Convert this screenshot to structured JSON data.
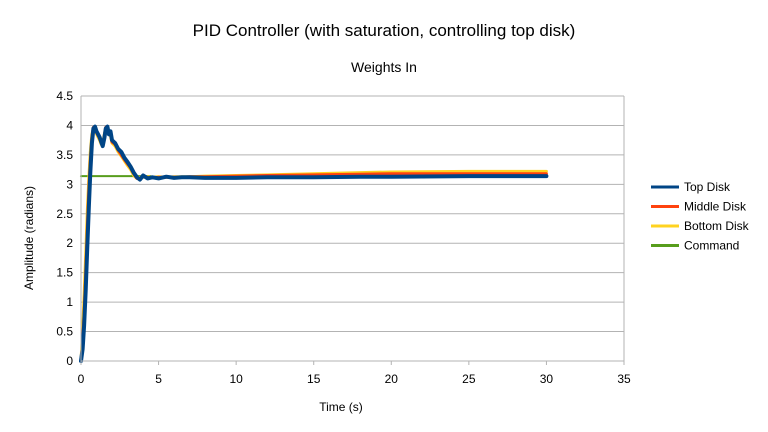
{
  "chart_data": {
    "type": "line",
    "title": "PID Controller (with saturation, controlling top disk)",
    "subtitle": "Weights In",
    "xlabel": "Time (s)",
    "ylabel": "Amplitude (radians)",
    "xlim": [
      0,
      35
    ],
    "ylim": [
      0,
      4.5
    ],
    "xticks": [
      0,
      5,
      10,
      15,
      20,
      25,
      30,
      35
    ],
    "yticks": [
      0,
      0.5,
      1,
      1.5,
      2,
      2.5,
      3,
      3.5,
      4,
      4.5
    ],
    "grid": true,
    "legend_position": "right",
    "series": [
      {
        "name": "Top Disk",
        "color": "#004586",
        "x": [
          0,
          0.1,
          0.2,
          0.3,
          0.4,
          0.5,
          0.6,
          0.7,
          0.8,
          0.9,
          1.0,
          1.1,
          1.2,
          1.3,
          1.4,
          1.5,
          1.6,
          1.7,
          1.8,
          1.9,
          2.0,
          2.2,
          2.4,
          2.6,
          2.8,
          3.0,
          3.2,
          3.4,
          3.6,
          3.8,
          4.0,
          4.3,
          4.6,
          5.0,
          5.5,
          6.0,
          6.5,
          7.0,
          8,
          10,
          12,
          15,
          18,
          20,
          25,
          30
        ],
        "values": [
          0,
          0.2,
          0.6,
          1.2,
          1.9,
          2.6,
          3.2,
          3.7,
          3.95,
          3.98,
          3.9,
          3.85,
          3.8,
          3.72,
          3.65,
          3.78,
          3.95,
          3.98,
          3.85,
          3.9,
          3.75,
          3.7,
          3.6,
          3.55,
          3.45,
          3.38,
          3.3,
          3.2,
          3.12,
          3.08,
          3.15,
          3.1,
          3.12,
          3.1,
          3.13,
          3.11,
          3.12,
          3.12,
          3.11,
          3.11,
          3.12,
          3.12,
          3.13,
          3.13,
          3.14,
          3.14
        ]
      },
      {
        "name": "Middle Disk",
        "color": "#ff420e",
        "x": [
          0,
          0.1,
          0.2,
          0.3,
          0.4,
          0.5,
          0.6,
          0.7,
          0.8,
          0.9,
          1.0,
          1.1,
          1.2,
          1.3,
          1.4,
          1.5,
          1.6,
          1.7,
          1.8,
          1.9,
          2.0,
          2.2,
          2.4,
          2.6,
          2.8,
          3.0,
          3.2,
          3.4,
          3.6,
          3.8,
          4.0,
          4.3,
          4.6,
          5.0,
          5.5,
          6.0,
          6.5,
          7.0,
          8,
          10,
          12,
          15,
          18,
          20,
          25,
          30
        ],
        "values": [
          0,
          0.3,
          0.8,
          1.5,
          2.2,
          2.9,
          3.4,
          3.8,
          3.97,
          3.95,
          3.88,
          3.83,
          3.78,
          3.7,
          3.68,
          3.82,
          3.97,
          3.95,
          3.88,
          3.85,
          3.72,
          3.68,
          3.58,
          3.5,
          3.42,
          3.35,
          3.28,
          3.18,
          3.1,
          3.1,
          3.13,
          3.12,
          3.11,
          3.12,
          3.12,
          3.12,
          3.12,
          3.13,
          3.13,
          3.14,
          3.15,
          3.16,
          3.17,
          3.18,
          3.18,
          3.18
        ]
      },
      {
        "name": "Bottom Disk",
        "color": "#ffd320",
        "x": [
          0,
          0.1,
          0.2,
          0.3,
          0.4,
          0.5,
          0.6,
          0.7,
          0.8,
          0.9,
          1.0,
          1.1,
          1.2,
          1.3,
          1.4,
          1.5,
          1.6,
          1.7,
          1.8,
          1.9,
          2.0,
          2.2,
          2.4,
          2.6,
          2.8,
          3.0,
          3.2,
          3.4,
          3.6,
          3.8,
          4.0,
          4.3,
          4.6,
          5.0,
          5.5,
          6.0,
          6.5,
          7.0,
          8,
          10,
          12,
          15,
          18,
          20,
          25,
          30
        ],
        "values": [
          0,
          0.5,
          1.1,
          1.8,
          2.5,
          3.1,
          3.55,
          3.85,
          3.96,
          3.93,
          3.86,
          3.8,
          3.75,
          3.68,
          3.7,
          3.85,
          3.96,
          3.92,
          3.86,
          3.82,
          3.7,
          3.65,
          3.55,
          3.48,
          3.4,
          3.32,
          3.25,
          3.15,
          3.1,
          3.12,
          3.12,
          3.13,
          3.12,
          3.13,
          3.12,
          3.13,
          3.13,
          3.13,
          3.14,
          3.15,
          3.16,
          3.18,
          3.2,
          3.21,
          3.22,
          3.22
        ]
      },
      {
        "name": "Command",
        "color": "#579d1c",
        "x": [
          0,
          4.5
        ],
        "values": [
          3.14,
          3.14
        ]
      }
    ]
  }
}
